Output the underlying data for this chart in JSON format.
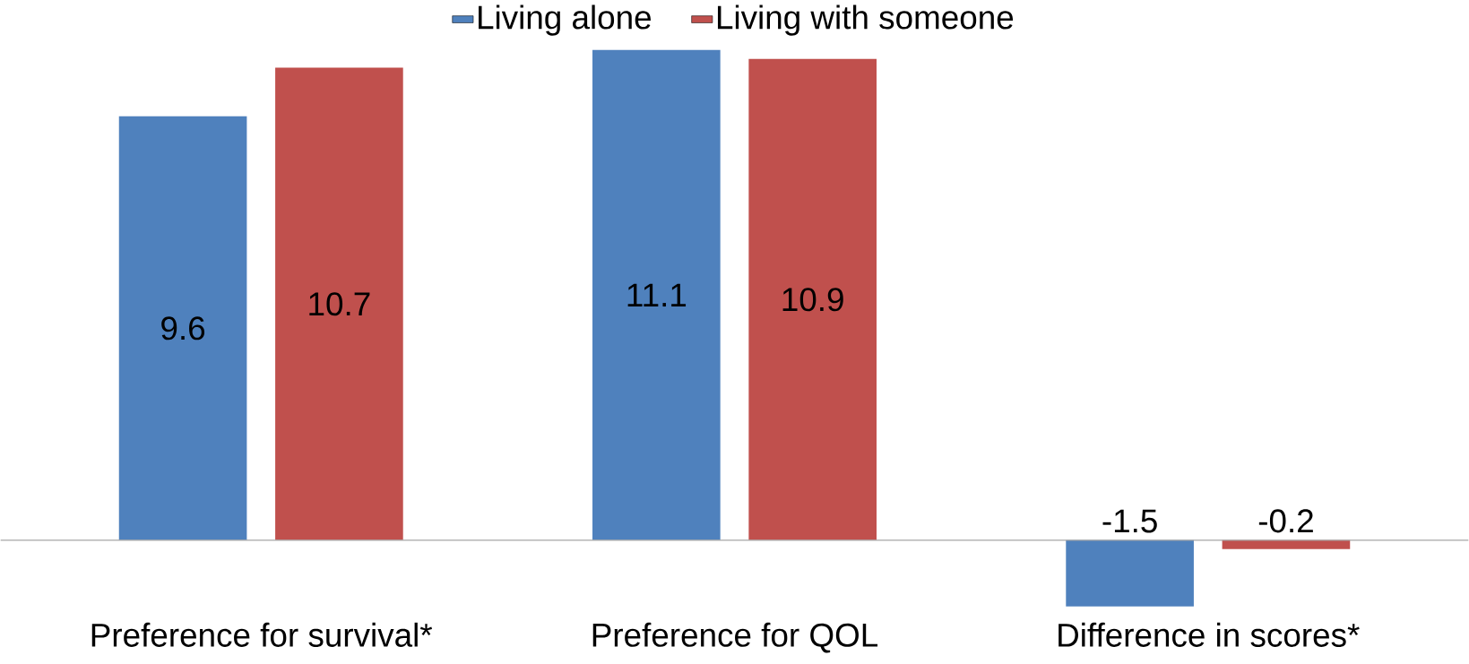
{
  "chart_data": {
    "type": "bar",
    "categories": [
      "Preference for survival*",
      "Preference for QOL",
      "Difference in scores*"
    ],
    "series": [
      {
        "name": "Living alone",
        "color": "#4f81bd",
        "values": [
          9.6,
          11.1,
          -1.5
        ]
      },
      {
        "name": "Living with someone",
        "color": "#c0504d",
        "values": [
          10.7,
          10.9,
          -0.2
        ]
      }
    ],
    "data_labels": true,
    "legend": "top"
  }
}
